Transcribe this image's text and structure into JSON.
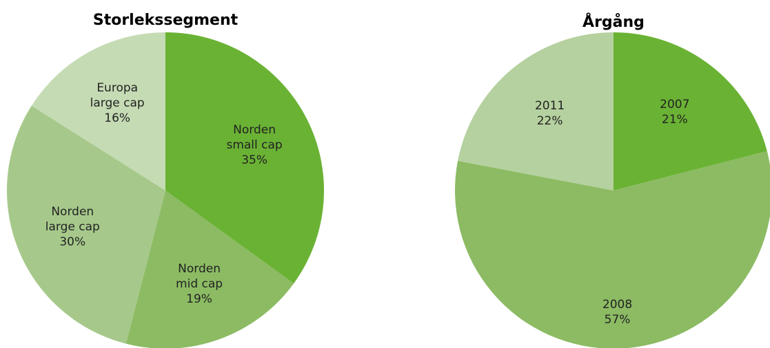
{
  "chart_data": [
    {
      "type": "pie",
      "title": "Storlekssegment",
      "categories": [
        "Norden small cap",
        "Norden mid cap",
        "Norden large cap",
        "Europa large cap"
      ],
      "values": [
        35,
        19,
        30,
        16
      ],
      "value_labels": [
        "35%",
        "19%",
        "30%",
        "16%"
      ],
      "colors": [
        "#6ab234",
        "#8cbb63",
        "#a6c98b",
        "#c5dbb4"
      ]
    },
    {
      "type": "pie",
      "title": "Årgång",
      "categories": [
        "2007",
        "2008",
        "2011"
      ],
      "values": [
        21,
        57,
        22
      ],
      "value_labels": [
        "21%",
        "57%",
        "22%"
      ],
      "colors": [
        "#6ab234",
        "#8cbb63",
        "#b5d19f"
      ]
    }
  ]
}
